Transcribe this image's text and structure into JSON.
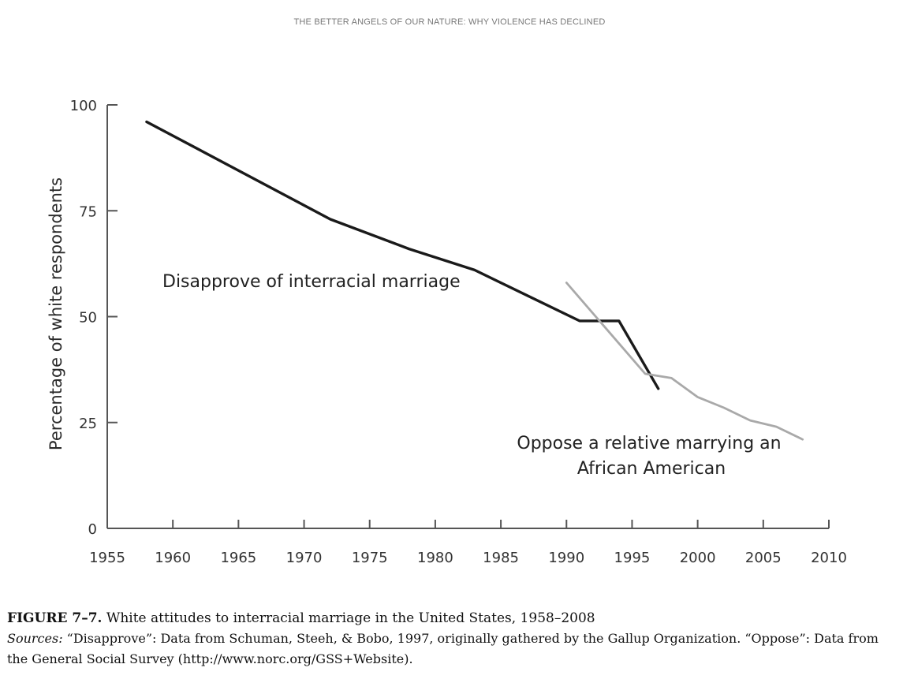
{
  "page": {
    "running_header": "THE BETTER ANGELS OF OUR NATURE: WHY VIOLENCE HAS DECLINED"
  },
  "chart_data": {
    "type": "line",
    "title": "",
    "xlabel": "",
    "ylabel": "Percentage of white respondents",
    "xlim": [
      1955,
      2010
    ],
    "ylim": [
      0,
      100
    ],
    "x_ticks": [
      1955,
      1960,
      1965,
      1970,
      1975,
      1980,
      1985,
      1990,
      1995,
      2000,
      2005,
      2010
    ],
    "y_ticks": [
      0,
      25,
      50,
      75,
      100
    ],
    "grid": false,
    "legend": "none",
    "series": [
      {
        "name": "Disapprove of interracial marriage",
        "color": "#1a1a1a",
        "points": [
          [
            1958,
            96
          ],
          [
            1965,
            84.5
          ],
          [
            1972,
            73
          ],
          [
            1978,
            66
          ],
          [
            1983,
            61
          ],
          [
            1991,
            49
          ],
          [
            1994,
            49
          ],
          [
            1997,
            33
          ]
        ]
      },
      {
        "name": "Oppose a relative marrying an African American",
        "color": "#a9a9a9",
        "points": [
          [
            1990,
            58
          ],
          [
            1996,
            36.5
          ],
          [
            1998,
            35.5
          ],
          [
            2000,
            31
          ],
          [
            2002,
            28.5
          ],
          [
            2004,
            25.5
          ],
          [
            2006,
            24
          ],
          [
            2008,
            21
          ]
        ]
      }
    ],
    "annotations": {
      "disapprove": "Disapprove of interracial marriage",
      "oppose_line1": "Oppose a relative marrying an",
      "oppose_line2": "African American"
    }
  },
  "caption": {
    "figure_label": "FIGURE 7–7.",
    "figure_title": "White attitudes to interracial marriage in the United States, 1958–2008",
    "sources_label": "Sources:",
    "sources_text": "“Disapprove”: Data from Schuman, Steeh, & Bobo, 1997, originally gathered by the Gallup Organization. “Oppose”: Data from the General Social Survey (http://www.norc.org/GSS+Website)."
  }
}
